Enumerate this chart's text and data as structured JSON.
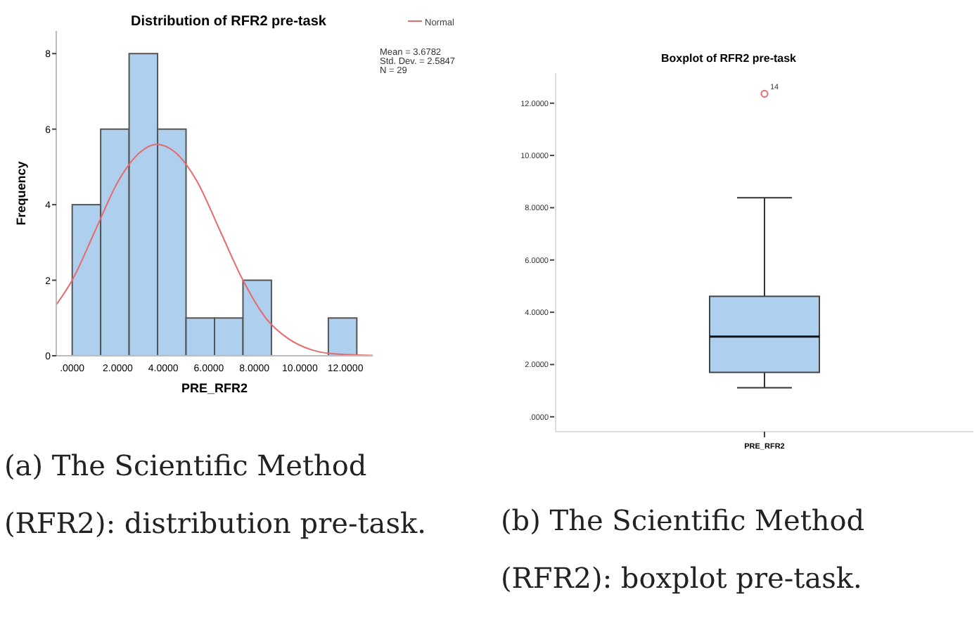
{
  "chart_data": [
    {
      "type": "histogram",
      "title": "Distribution of  RFR2 pre-task",
      "xlabel": "PRE_RFR2",
      "ylabel": "Frequency",
      "xlim": [
        -0.7,
        13.2
      ],
      "ylim": [
        0,
        8.6
      ],
      "xticks": [
        {
          "value": 0,
          "label": ".0000"
        },
        {
          "value": 2,
          "label": "2.0000"
        },
        {
          "value": 4,
          "label": "4.0000"
        },
        {
          "value": 6,
          "label": "6.0000"
        },
        {
          "value": 8,
          "label": "8.0000"
        },
        {
          "value": 10,
          "label": "10.0000"
        },
        {
          "value": 12,
          "label": "12.0000"
        }
      ],
      "yticks": [
        0,
        2,
        4,
        6,
        8
      ],
      "legend": "top right",
      "grid": false,
      "series": [
        {
          "type": "histogram",
          "color": "#aecfee",
          "bins": [
            0,
            1.25,
            2.5,
            3.75,
            5,
            6.25,
            7.5,
            8.75,
            10,
            11.25,
            12.5
          ],
          "values": [
            4,
            6,
            8,
            6,
            1,
            1,
            2,
            0,
            0,
            1
          ]
        },
        {
          "type": "line",
          "name": "Normal",
          "color": "#e8696b",
          "marker": "none",
          "x": [
            -0.7,
            0,
            1,
            2,
            3,
            3.7,
            4.5,
            5.5,
            6.5,
            7.5,
            8.5,
            9.5,
            10.5,
            11.5,
            13.2
          ],
          "values": [
            1.35,
            2.0,
            3.3,
            4.6,
            5.4,
            5.6,
            5.4,
            4.6,
            3.3,
            2.0,
            1.0,
            0.45,
            0.16,
            0.05,
            0.01
          ]
        }
      ],
      "annotations": [
        "Mean = 3.6782",
        "Std. Dev. = 2.5847",
        "N = 29",
        "(a) The Scientific Method (RFR2): distribution pre-task."
      ]
    },
    {
      "type": "box",
      "title": "Boxplot of RFR2 pre-task",
      "categories": [
        "PRE_RFR2"
      ],
      "ylim": [
        -0.57,
        13.15
      ],
      "yticks": [
        {
          "value": 0,
          "label": ".0000"
        },
        {
          "value": 2,
          "label": "2.0000"
        },
        {
          "value": 4,
          "label": "4.0000"
        },
        {
          "value": 6,
          "label": "6.0000"
        },
        {
          "value": 8,
          "label": "8.0000"
        },
        {
          "value": 10,
          "label": "10.0000"
        },
        {
          "value": 12,
          "label": "12.0000"
        }
      ],
      "grid": false,
      "color": "#aecfee",
      "boxes": [
        {
          "low": 1.11,
          "q1": 1.7,
          "median": 3.07,
          "q3": 4.61,
          "high": 8.38,
          "outliers": [
            12.36
          ]
        }
      ],
      "annotations": [
        "14",
        "(b) The Scientific Method (RFR2): boxplot pre-task."
      ]
    }
  ]
}
